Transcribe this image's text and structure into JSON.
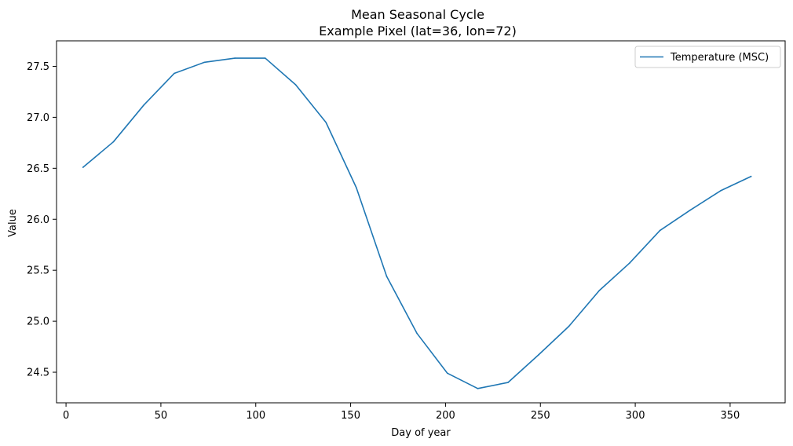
{
  "chart_data": {
    "type": "line",
    "title": "Mean Seasonal Cycle",
    "subtitle": "Example Pixel (lat=36, lon=72)",
    "xlabel": "Day of year",
    "ylabel": "Value",
    "xlim": [
      -5,
      379
    ],
    "ylim": [
      24.2,
      27.75
    ],
    "xticks": [
      0,
      50,
      100,
      150,
      200,
      250,
      300,
      350
    ],
    "yticks": [
      24.5,
      25.0,
      25.5,
      26.0,
      26.5,
      27.0,
      27.5
    ],
    "grid": false,
    "legend_position": "upper right",
    "series": [
      {
        "name": "Temperature (MSC)",
        "color": "#1f77b4",
        "x": [
          9,
          25,
          41,
          57,
          73,
          89,
          105,
          121,
          137,
          153,
          169,
          185,
          201,
          217,
          233,
          249,
          265,
          281,
          297,
          313,
          329,
          345,
          361
        ],
        "y": [
          26.51,
          26.76,
          27.12,
          27.43,
          27.54,
          27.58,
          27.58,
          27.32,
          26.95,
          26.31,
          25.44,
          24.88,
          24.49,
          24.34,
          24.4,
          24.67,
          24.95,
          25.3,
          25.57,
          25.89,
          26.09,
          26.28,
          26.42
        ]
      }
    ]
  }
}
